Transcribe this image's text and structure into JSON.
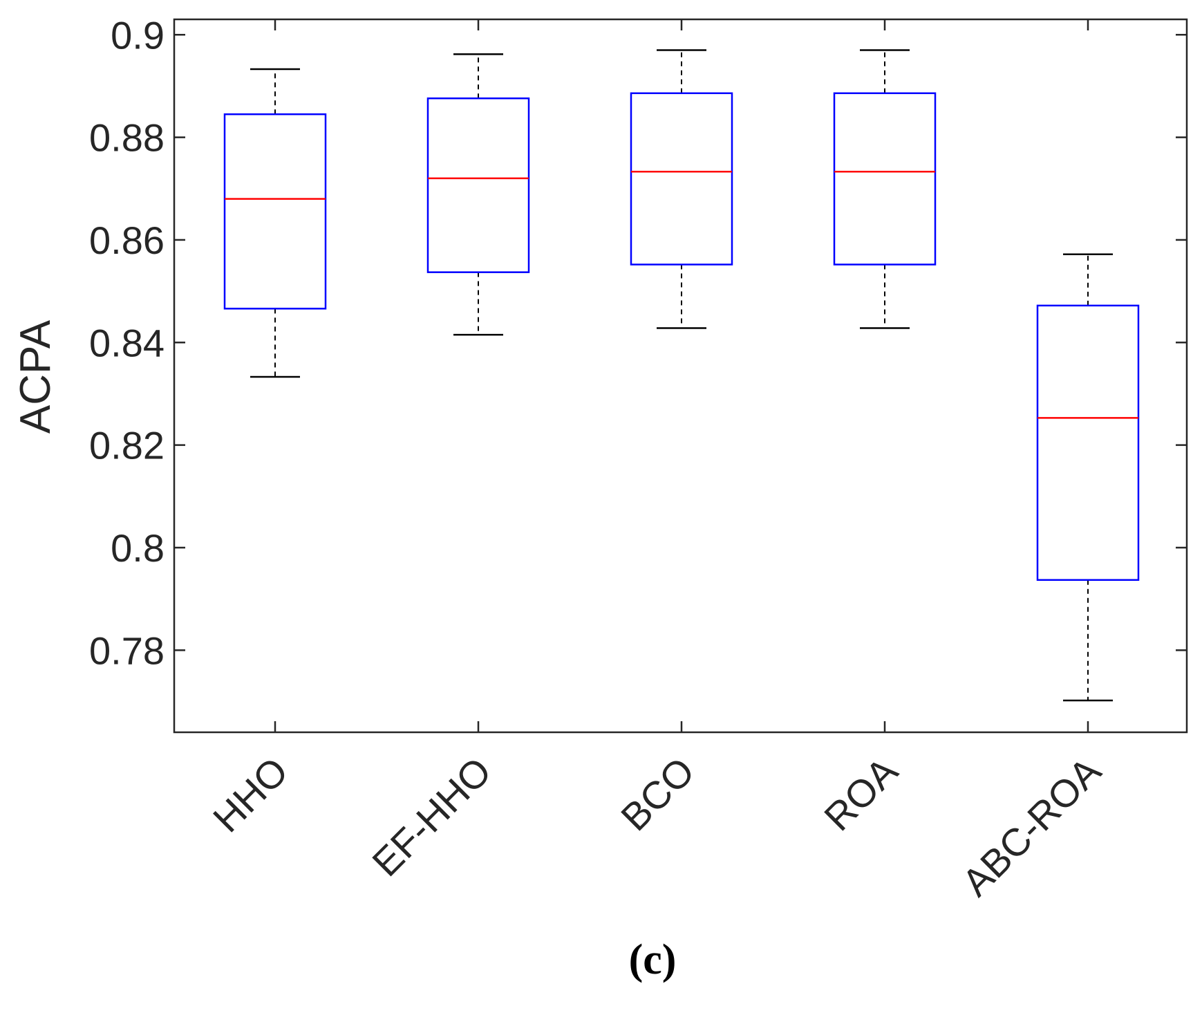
{
  "chart_data": {
    "type": "box",
    "ylabel": "ACPA",
    "xlabel": "",
    "ylim": [
      0.764,
      0.903
    ],
    "yticks": [
      0.78,
      0.8,
      0.82,
      0.84,
      0.86,
      0.88,
      0.9
    ],
    "ytick_labels": [
      "0.78",
      "0.8",
      "0.82",
      "0.84",
      "0.86",
      "0.88",
      "0.9"
    ],
    "categories": [
      "HHO",
      "EF-HHO",
      "BCO",
      "ROA",
      "ABC-ROA"
    ],
    "boxes": [
      {
        "name": "HHO",
        "whisker_low": 0.8333,
        "q1": 0.8466,
        "median": 0.868,
        "q3": 0.8845,
        "whisker_high": 0.8933
      },
      {
        "name": "EF-HHO",
        "whisker_low": 0.8415,
        "q1": 0.8537,
        "median": 0.872,
        "q3": 0.8876,
        "whisker_high": 0.8962
      },
      {
        "name": "BCO",
        "whisker_low": 0.8428,
        "q1": 0.8552,
        "median": 0.8733,
        "q3": 0.8886,
        "whisker_high": 0.897
      },
      {
        "name": "ROA",
        "whisker_low": 0.8428,
        "q1": 0.8552,
        "median": 0.8733,
        "q3": 0.8886,
        "whisker_high": 0.897
      },
      {
        "name": "ABC-ROA",
        "whisker_low": 0.7702,
        "q1": 0.7937,
        "median": 0.8253,
        "q3": 0.8472,
        "whisker_high": 0.8572
      }
    ],
    "colors": {
      "box": "#0000ff",
      "median": "#ff0000",
      "whisker": "#000000",
      "axes": "#262626"
    },
    "panel_label": "(c)"
  }
}
